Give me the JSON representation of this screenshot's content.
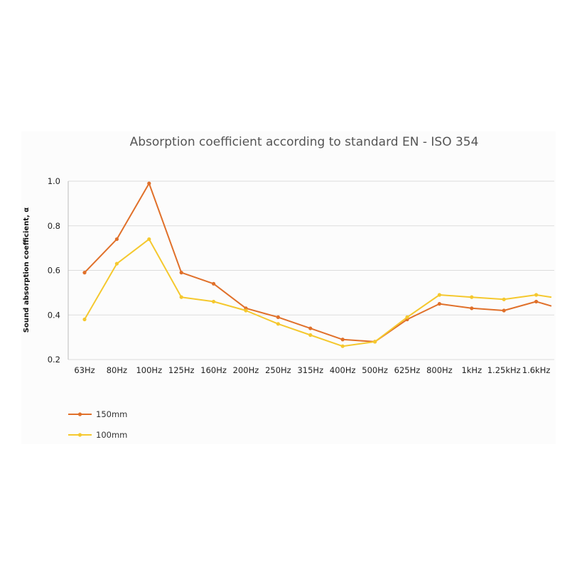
{
  "chart_data": {
    "type": "line",
    "title": "Absorption coefficient according to standard EN - ISO 354",
    "xlabel": "",
    "ylabel": "Sound absorption coefficient, α",
    "ylim": [
      0.2,
      1.0
    ],
    "yticks": [
      "0.2",
      "0.4",
      "0.6",
      "0.8",
      "1.0"
    ],
    "grid": true,
    "legend_position": "bottom-left",
    "categories": [
      "63Hz",
      "80Hz",
      "100Hz",
      "125Hz",
      "160Hz",
      "200Hz",
      "250Hz",
      "315Hz",
      "400Hz",
      "500Hz",
      "625Hz",
      "800Hz",
      "1kHz",
      "1.25kHz",
      "1.6kHz"
    ],
    "series": [
      {
        "name": "150mm",
        "color": "#e0702a",
        "values": [
          0.59,
          0.74,
          0.99,
          0.59,
          0.54,
          0.43,
          0.39,
          0.34,
          0.29,
          0.28,
          0.38,
          0.45,
          0.43,
          0.42,
          0.46
        ],
        "end_value": 0.44
      },
      {
        "name": "100mm",
        "color": "#f5c82e",
        "values": [
          0.38,
          0.63,
          0.74,
          0.48,
          0.46,
          0.42,
          0.36,
          0.31,
          0.26,
          0.28,
          0.39,
          0.49,
          0.48,
          0.47,
          0.49
        ],
        "end_value": 0.48
      }
    ]
  }
}
